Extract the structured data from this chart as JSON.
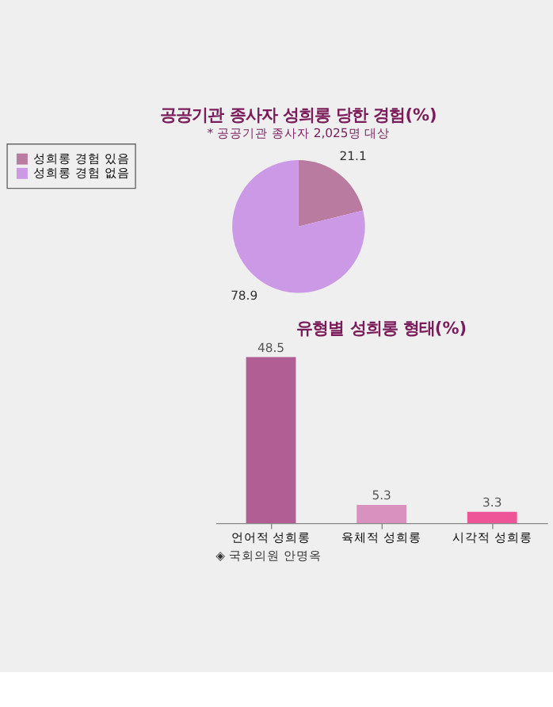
{
  "chart_data": [
    {
      "type": "pie",
      "title": "공공기관 종사자 성희롱 당한 경험(%)",
      "subtitle": "* 공공기관 종사자 2,025명 대상",
      "categories": [
        "성희롱 경험 있음",
        "성희롱 경험 없음"
      ],
      "values": [
        21.1,
        78.9
      ],
      "colors": [
        "#b97ca0",
        "#cc99e6"
      ],
      "data_labels": true,
      "legend": "left"
    },
    {
      "type": "bar",
      "title": "유형별 성희롱 형태(%)",
      "categories": [
        "언어적 성희롱",
        "육체적 성희롱",
        "시각적 성희롱"
      ],
      "values": [
        48.5,
        5.3,
        3.3
      ],
      "colors": [
        "#b05e94",
        "#d992c0",
        "#ee5599"
      ],
      "data_labels": true,
      "annotations": [
        "◈ 국회의원 안명옥"
      ]
    }
  ]
}
